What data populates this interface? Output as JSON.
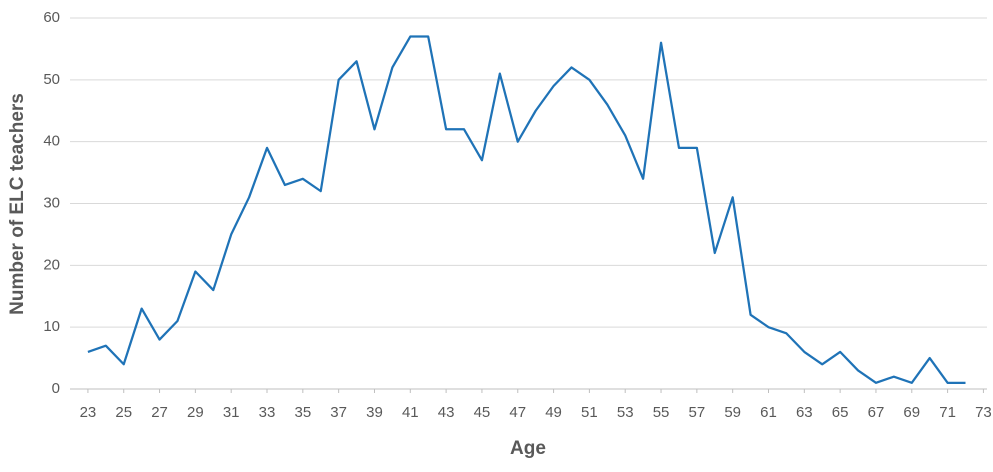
{
  "chart_data": {
    "type": "line",
    "x_label": "Age",
    "y_label": "Number of ELC teachers",
    "x": [
      23,
      24,
      25,
      26,
      27,
      28,
      29,
      30,
      31,
      32,
      33,
      34,
      35,
      36,
      37,
      38,
      39,
      40,
      41,
      42,
      43,
      44,
      45,
      46,
      47,
      48,
      49,
      50,
      51,
      52,
      53,
      54,
      55,
      56,
      57,
      58,
      59,
      60,
      61,
      62,
      63,
      64,
      65,
      66,
      67,
      68,
      69,
      70,
      71,
      72
    ],
    "series": [
      {
        "name": "ELC teachers",
        "color": "#1f73b7",
        "values": [
          6,
          7,
          4,
          13,
          8,
          11,
          19,
          16,
          25,
          31,
          39,
          33,
          34,
          32,
          50,
          53,
          42,
          52,
          57,
          57,
          42,
          42,
          37,
          51,
          40,
          45,
          49,
          52,
          50,
          46,
          41,
          34,
          56,
          39,
          39,
          22,
          31,
          12,
          10,
          9,
          6,
          4,
          6,
          3,
          1,
          2,
          1,
          5,
          1,
          1
        ]
      }
    ],
    "xlim": [
      22,
      73.2
    ],
    "xticks": [
      23,
      25,
      27,
      29,
      31,
      33,
      35,
      37,
      39,
      41,
      43,
      45,
      47,
      49,
      51,
      53,
      55,
      57,
      59,
      61,
      63,
      65,
      67,
      69,
      71,
      73
    ],
    "ylim": [
      0,
      60
    ],
    "yticks": [
      0,
      10,
      20,
      30,
      40,
      50,
      60
    ],
    "grid": true
  }
}
